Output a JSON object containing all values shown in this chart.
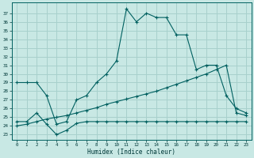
{
  "xlabel": "Humidex (Indice chaleur)",
  "bg_color": "#c8e8e4",
  "grid_color": "#a8d0cc",
  "line_color": "#006060",
  "x_ticks": [
    0,
    1,
    2,
    3,
    4,
    5,
    6,
    7,
    8,
    9,
    10,
    11,
    12,
    13,
    14,
    15,
    16,
    17,
    18,
    19,
    20,
    21,
    22,
    23
  ],
  "y_ticks": [
    23,
    24,
    25,
    26,
    27,
    28,
    29,
    30,
    31,
    32,
    33,
    34,
    35,
    36,
    37
  ],
  "ylim": [
    22.4,
    38.2
  ],
  "xlim": [
    -0.5,
    23.5
  ],
  "line1_x": [
    0,
    1,
    2,
    3,
    4,
    5,
    6,
    7,
    8,
    9,
    10,
    11,
    12,
    13,
    14,
    15,
    16,
    17,
    18,
    19,
    20,
    21,
    22,
    23
  ],
  "line1_y": [
    29.0,
    29.0,
    29.0,
    27.5,
    24.2,
    24.5,
    27.0,
    27.5,
    29.0,
    30.0,
    31.5,
    37.5,
    36.0,
    37.0,
    36.5,
    36.5,
    34.5,
    34.5,
    30.5,
    31.0,
    31.0,
    27.5,
    26.0,
    25.5
  ],
  "line2_x": [
    0,
    1,
    2,
    3,
    4,
    5,
    6,
    7,
    8,
    9,
    10,
    11,
    12,
    13,
    14,
    15,
    16,
    17,
    18,
    19,
    20,
    21,
    22,
    23
  ],
  "line2_y": [
    24.0,
    24.2,
    24.5,
    24.8,
    25.0,
    25.2,
    25.5,
    25.8,
    26.1,
    26.5,
    26.8,
    27.1,
    27.4,
    27.7,
    28.0,
    28.4,
    28.8,
    29.2,
    29.6,
    30.0,
    30.5,
    31.0,
    25.5,
    25.2
  ],
  "line3_x": [
    0,
    1,
    2,
    3,
    4,
    5,
    6,
    7,
    8,
    9,
    10,
    11,
    12,
    13,
    14,
    15,
    16,
    17,
    18,
    19,
    20,
    21,
    22,
    23
  ],
  "line3_y": [
    24.5,
    24.5,
    25.5,
    24.2,
    23.0,
    23.5,
    24.3,
    24.5,
    24.5,
    24.5,
    24.5,
    24.5,
    24.5,
    24.5,
    24.5,
    24.5,
    24.5,
    24.5,
    24.5,
    24.5,
    24.5,
    24.5,
    24.5,
    24.5
  ]
}
